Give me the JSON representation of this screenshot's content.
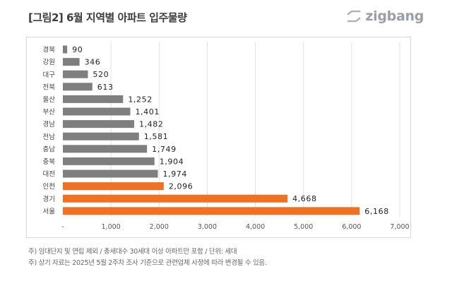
{
  "header": {
    "title": "[그림2] 6월 지역별 아파트 입주물량",
    "logo_text": "zigbang"
  },
  "icons": {
    "logo": "zigbang-logo-icon"
  },
  "colors": {
    "bar_default": "#7f7f7f",
    "bar_highlight": "#f07123",
    "grid": "#e3e3e3",
    "text": "#333333"
  },
  "chart_data": {
    "type": "bar",
    "orientation": "horizontal",
    "title": "",
    "xlabel": "",
    "ylabel": "",
    "categories": [
      "경북",
      "강원",
      "대구",
      "전북",
      "울산",
      "부산",
      "경남",
      "전남",
      "충남",
      "충북",
      "대전",
      "인천",
      "경기",
      "서울"
    ],
    "values": [
      90,
      346,
      520,
      613,
      1252,
      1401,
      1482,
      1581,
      1749,
      1904,
      1974,
      2096,
      4668,
      6168
    ],
    "value_labels": [
      "90",
      "346",
      "520",
      "613",
      "1,252",
      "1,401",
      "1,482",
      "1,581",
      "1,749",
      "1,904",
      "1,974",
      "2,096",
      "4,668",
      "6,168"
    ],
    "highlight": [
      "인천",
      "경기",
      "서울"
    ],
    "xlim": [
      0,
      7000
    ],
    "x_ticks": [
      0,
      1000,
      2000,
      3000,
      4000,
      5000,
      6000,
      7000
    ],
    "x_tick_labels": [
      "-",
      "1,000",
      "2,000",
      "3,000",
      "4,000",
      "5,000",
      "6,000",
      "7,000"
    ],
    "grid": true,
    "legend": "none"
  },
  "notes": [
    "주) 임대단지 및 연립 제외 / 총세대수 30세대 이상 아파트만 포함 / 단위: 세대",
    "주) 상기 자료는 2025년 5월 2주차 조사 기준으로 관련업체 사정에 따라 변경될 수 있음."
  ]
}
